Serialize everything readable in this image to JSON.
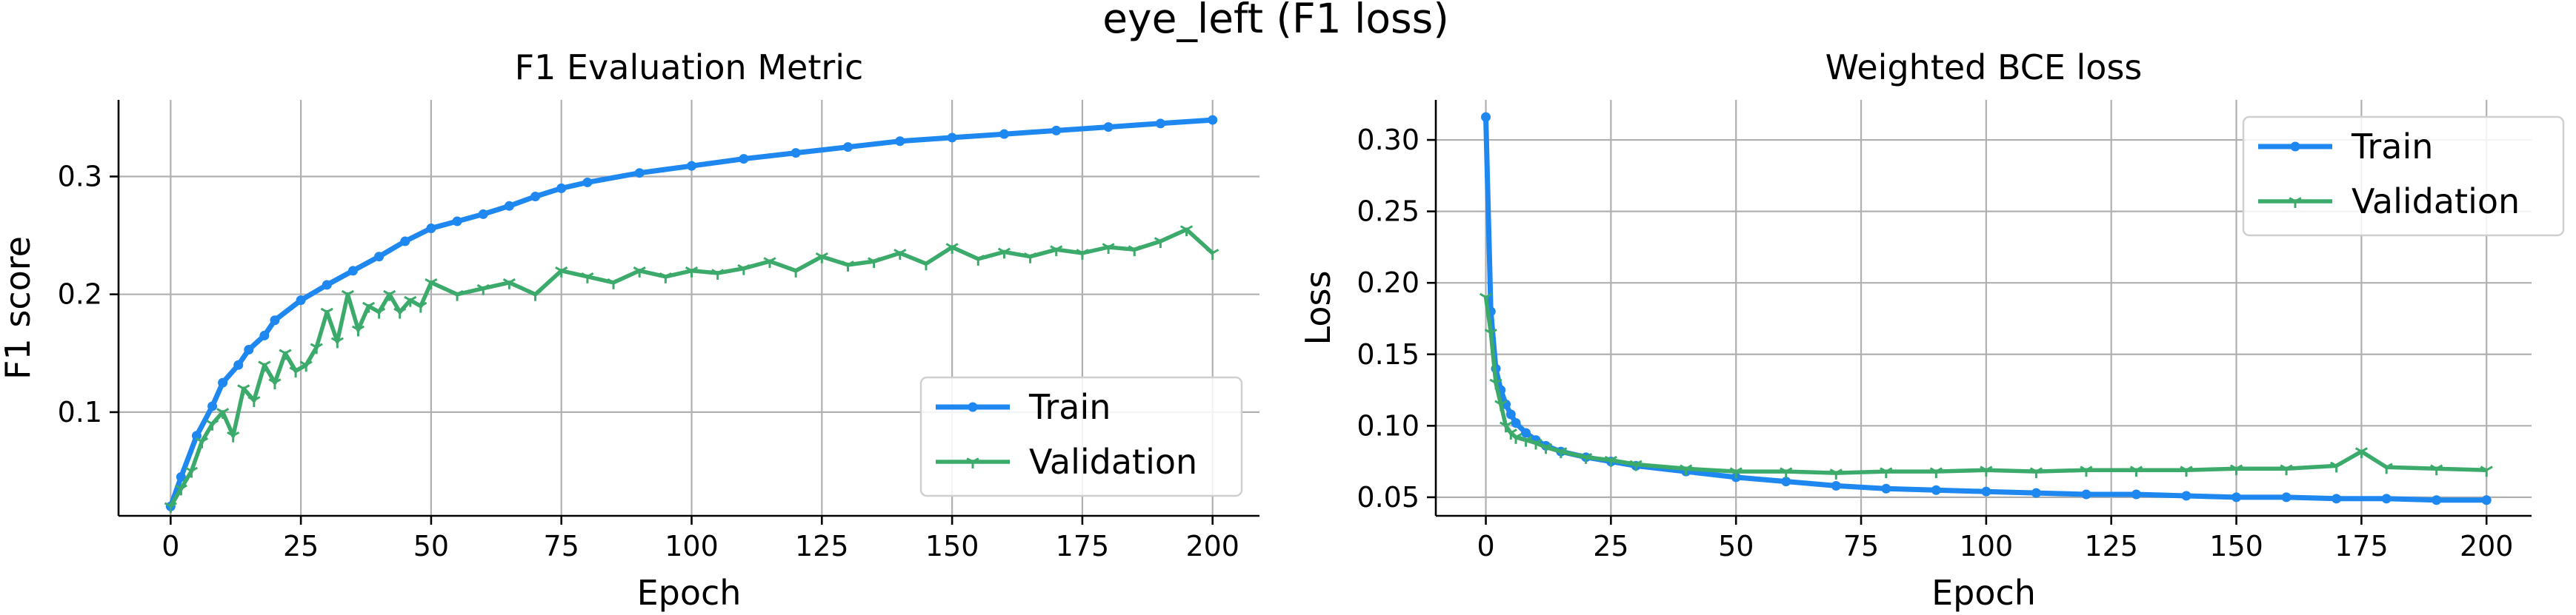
{
  "figure": {
    "suptitle": "eye_left (F1 loss)"
  },
  "colors": {
    "train": "#1e88f0",
    "validation": "#3caa6a"
  },
  "chart_data": [
    {
      "type": "line",
      "title": "F1 Evaluation Metric",
      "xlabel": "Epoch",
      "ylabel": "F1 score",
      "xlim": [
        -10,
        209
      ],
      "ylim": [
        0.012,
        0.365
      ],
      "xticks": [
        0,
        25,
        50,
        75,
        100,
        125,
        150,
        175,
        200
      ],
      "yticks": [
        0.1,
        0.2,
        0.3
      ],
      "ytick_labels": [
        "0.1",
        "0.2",
        "0.3"
      ],
      "grid": true,
      "legend_position": "lower-right",
      "series": [
        {
          "name": "Train",
          "marker": "circle",
          "x": [
            0,
            2,
            5,
            8,
            10,
            13,
            15,
            18,
            20,
            25,
            30,
            35,
            40,
            45,
            50,
            55,
            60,
            65,
            70,
            75,
            80,
            90,
            100,
            110,
            120,
            130,
            140,
            150,
            160,
            170,
            180,
            190,
            200
          ],
          "y": [
            0.02,
            0.045,
            0.08,
            0.105,
            0.125,
            0.14,
            0.153,
            0.165,
            0.178,
            0.195,
            0.208,
            0.22,
            0.232,
            0.245,
            0.256,
            0.262,
            0.268,
            0.275,
            0.283,
            0.29,
            0.295,
            0.303,
            0.309,
            0.315,
            0.32,
            0.325,
            0.33,
            0.333,
            0.336,
            0.339,
            0.342,
            0.345,
            0.348
          ]
        },
        {
          "name": "Validation",
          "marker": "tri_down",
          "x": [
            0,
            2,
            4,
            6,
            8,
            10,
            12,
            14,
            16,
            18,
            20,
            22,
            24,
            26,
            28,
            30,
            32,
            34,
            36,
            38,
            40,
            42,
            44,
            46,
            48,
            50,
            55,
            60,
            65,
            70,
            75,
            80,
            85,
            90,
            95,
            100,
            105,
            110,
            115,
            120,
            125,
            130,
            135,
            140,
            145,
            150,
            155,
            160,
            165,
            170,
            175,
            180,
            185,
            190,
            195,
            200
          ],
          "y": [
            0.02,
            0.035,
            0.05,
            0.075,
            0.09,
            0.1,
            0.08,
            0.12,
            0.11,
            0.14,
            0.125,
            0.15,
            0.135,
            0.14,
            0.155,
            0.185,
            0.16,
            0.2,
            0.17,
            0.19,
            0.185,
            0.2,
            0.185,
            0.195,
            0.19,
            0.21,
            0.2,
            0.205,
            0.21,
            0.2,
            0.22,
            0.215,
            0.21,
            0.22,
            0.215,
            0.22,
            0.218,
            0.222,
            0.228,
            0.22,
            0.232,
            0.225,
            0.228,
            0.235,
            0.226,
            0.24,
            0.23,
            0.236,
            0.232,
            0.238,
            0.235,
            0.24,
            0.238,
            0.245,
            0.255,
            0.235
          ]
        }
      ]
    },
    {
      "type": "line",
      "title": "Weighted BCE loss",
      "xlabel": "Epoch",
      "ylabel": "Loss",
      "xlim": [
        -10,
        209
      ],
      "ylim": [
        0.037,
        0.328
      ],
      "xticks": [
        0,
        25,
        50,
        75,
        100,
        125,
        150,
        175,
        200
      ],
      "yticks": [
        0.05,
        0.1,
        0.15,
        0.2,
        0.25,
        0.3
      ],
      "ytick_labels": [
        "0.05",
        "0.10",
        "0.15",
        "0.20",
        "0.25",
        "0.30"
      ],
      "grid": true,
      "legend_position": "upper-right",
      "series": [
        {
          "name": "Train",
          "marker": "circle",
          "x": [
            0,
            1,
            2,
            3,
            4,
            5,
            6,
            8,
            10,
            12,
            15,
            20,
            25,
            30,
            40,
            50,
            60,
            70,
            80,
            90,
            100,
            110,
            120,
            130,
            140,
            150,
            160,
            170,
            180,
            190,
            200
          ],
          "y": [
            0.316,
            0.18,
            0.14,
            0.125,
            0.115,
            0.108,
            0.102,
            0.095,
            0.09,
            0.086,
            0.082,
            0.078,
            0.075,
            0.072,
            0.068,
            0.064,
            0.061,
            0.058,
            0.056,
            0.055,
            0.054,
            0.053,
            0.052,
            0.052,
            0.051,
            0.05,
            0.05,
            0.049,
            0.049,
            0.048,
            0.048
          ]
        },
        {
          "name": "Validation",
          "marker": "tri_down",
          "x": [
            0,
            1,
            2,
            3,
            4,
            5,
            6,
            8,
            10,
            12,
            15,
            20,
            25,
            30,
            40,
            50,
            60,
            70,
            80,
            90,
            100,
            110,
            120,
            130,
            140,
            150,
            160,
            170,
            175,
            180,
            190,
            200
          ],
          "y": [
            0.19,
            0.165,
            0.13,
            0.115,
            0.1,
            0.095,
            0.092,
            0.09,
            0.088,
            0.085,
            0.082,
            0.078,
            0.076,
            0.073,
            0.07,
            0.068,
            0.068,
            0.067,
            0.068,
            0.068,
            0.069,
            0.068,
            0.069,
            0.069,
            0.069,
            0.07,
            0.07,
            0.072,
            0.082,
            0.071,
            0.07,
            0.069
          ]
        }
      ]
    }
  ]
}
